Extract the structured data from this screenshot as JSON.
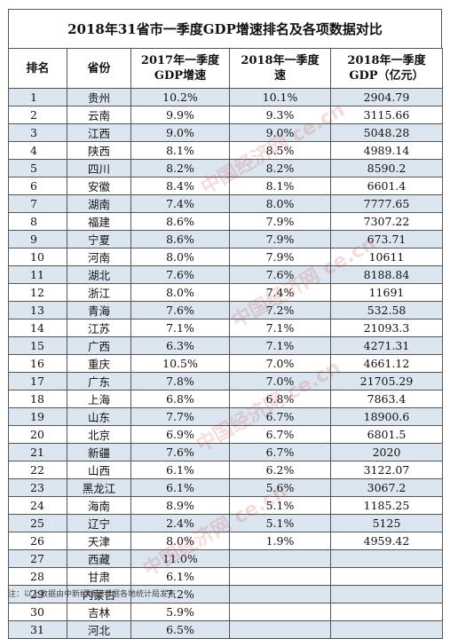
{
  "title": "2018年31省市一季度GDP增速排名及各项数据对比",
  "headers": {
    "rank": "排名",
    "province": "省份",
    "growth2017_line1": "2017年一季度",
    "growth2017_line2": "GDP增速",
    "growth2018_line1": "2018年一季度",
    "growth2018_line2": "速",
    "gdp2018_line1": "2018年一季度",
    "gdp2018_line2": "GDP（亿元）"
  },
  "rows": [
    {
      "rank": "1",
      "province": "贵州",
      "g2017": "10.2%",
      "g2018": "10.1%",
      "gdp": "2904.79"
    },
    {
      "rank": "2",
      "province": "云南",
      "g2017": "9.9%",
      "g2018": "9.3%",
      "gdp": "3115.66"
    },
    {
      "rank": "3",
      "province": "江西",
      "g2017": "9.0%",
      "g2018": "9.0%",
      "gdp": "5048.28"
    },
    {
      "rank": "4",
      "province": "陕西",
      "g2017": "8.1%",
      "g2018": "8.5%",
      "gdp": "4989.14"
    },
    {
      "rank": "5",
      "province": "四川",
      "g2017": "8.2%",
      "g2018": "8.2%",
      "gdp": "8590.2"
    },
    {
      "rank": "6",
      "province": "安徽",
      "g2017": "8.4%",
      "g2018": "8.1%",
      "gdp": "6601.4"
    },
    {
      "rank": "7",
      "province": "湖南",
      "g2017": "7.4%",
      "g2018": "8.0%",
      "gdp": "7777.65"
    },
    {
      "rank": "8",
      "province": "福建",
      "g2017": "8.6%",
      "g2018": "7.9%",
      "gdp": "7307.22"
    },
    {
      "rank": "9",
      "province": "宁夏",
      "g2017": "8.6%",
      "g2018": "7.9%",
      "gdp": "673.71"
    },
    {
      "rank": "10",
      "province": "河南",
      "g2017": "8.0%",
      "g2018": "7.9%",
      "gdp": "10611"
    },
    {
      "rank": "11",
      "province": "湖北",
      "g2017": "7.6%",
      "g2018": "7.6%",
      "gdp": "8188.84"
    },
    {
      "rank": "12",
      "province": "浙江",
      "g2017": "8.0%",
      "g2018": "7.4%",
      "gdp": "11691"
    },
    {
      "rank": "13",
      "province": "青海",
      "g2017": "7.6%",
      "g2018": "7.2%",
      "gdp": "532.58"
    },
    {
      "rank": "14",
      "province": "江苏",
      "g2017": "7.1%",
      "g2018": "7.1%",
      "gdp": "21093.3"
    },
    {
      "rank": "15",
      "province": "广西",
      "g2017": "6.3%",
      "g2018": "7.1%",
      "gdp": "4271.31"
    },
    {
      "rank": "16",
      "province": "重庆",
      "g2017": "10.5%",
      "g2018": "7.0%",
      "gdp": "4661.12"
    },
    {
      "rank": "17",
      "province": "广东",
      "g2017": "7.8%",
      "g2018": "7.0%",
      "gdp": "21705.29"
    },
    {
      "rank": "18",
      "province": "上海",
      "g2017": "6.8%",
      "g2018": "6.8%",
      "gdp": "7863.4"
    },
    {
      "rank": "19",
      "province": "山东",
      "g2017": "7.7%",
      "g2018": "6.7%",
      "gdp": "18900.6"
    },
    {
      "rank": "20",
      "province": "北京",
      "g2017": "6.9%",
      "g2018": "6.7%",
      "gdp": "6801.5"
    },
    {
      "rank": "21",
      "province": "新疆",
      "g2017": "7.6%",
      "g2018": "6.7%",
      "gdp": "2020"
    },
    {
      "rank": "22",
      "province": "山西",
      "g2017": "6.1%",
      "g2018": "6.2%",
      "gdp": "3122.07"
    },
    {
      "rank": "23",
      "province": "黑龙江",
      "g2017": "6.1%",
      "g2018": "5.6%",
      "gdp": "3067.2"
    },
    {
      "rank": "24",
      "province": "海南",
      "g2017": "8.9%",
      "g2018": "5.1%",
      "gdp": "1185.25"
    },
    {
      "rank": "25",
      "province": "辽宁",
      "g2017": "2.4%",
      "g2018": "5.1%",
      "gdp": "5125"
    },
    {
      "rank": "26",
      "province": "天津",
      "g2017": "8.0%",
      "g2018": "1.9%",
      "gdp": "4959.42"
    },
    {
      "rank": "27",
      "province": "西藏",
      "g2017": "11.0%",
      "g2018": "",
      "gdp": ""
    },
    {
      "rank": "28",
      "province": "甘肃",
      "g2017": "6.1%",
      "g2018": "",
      "gdp": ""
    },
    {
      "rank": "29",
      "province": "内蒙古",
      "g2017": "7.2%",
      "g2018": "",
      "gdp": ""
    },
    {
      "rank": "30",
      "province": "吉林",
      "g2017": "5.9%",
      "g2018": "",
      "gdp": ""
    },
    {
      "rank": "31",
      "province": "河北",
      "g2017": "6.5%",
      "g2018": "",
      "gdp": ""
    }
  ],
  "note": "注：以上数据由中新经纬记者据各地统计局发布",
  "watermark": "中国经济网 ce.cn"
}
